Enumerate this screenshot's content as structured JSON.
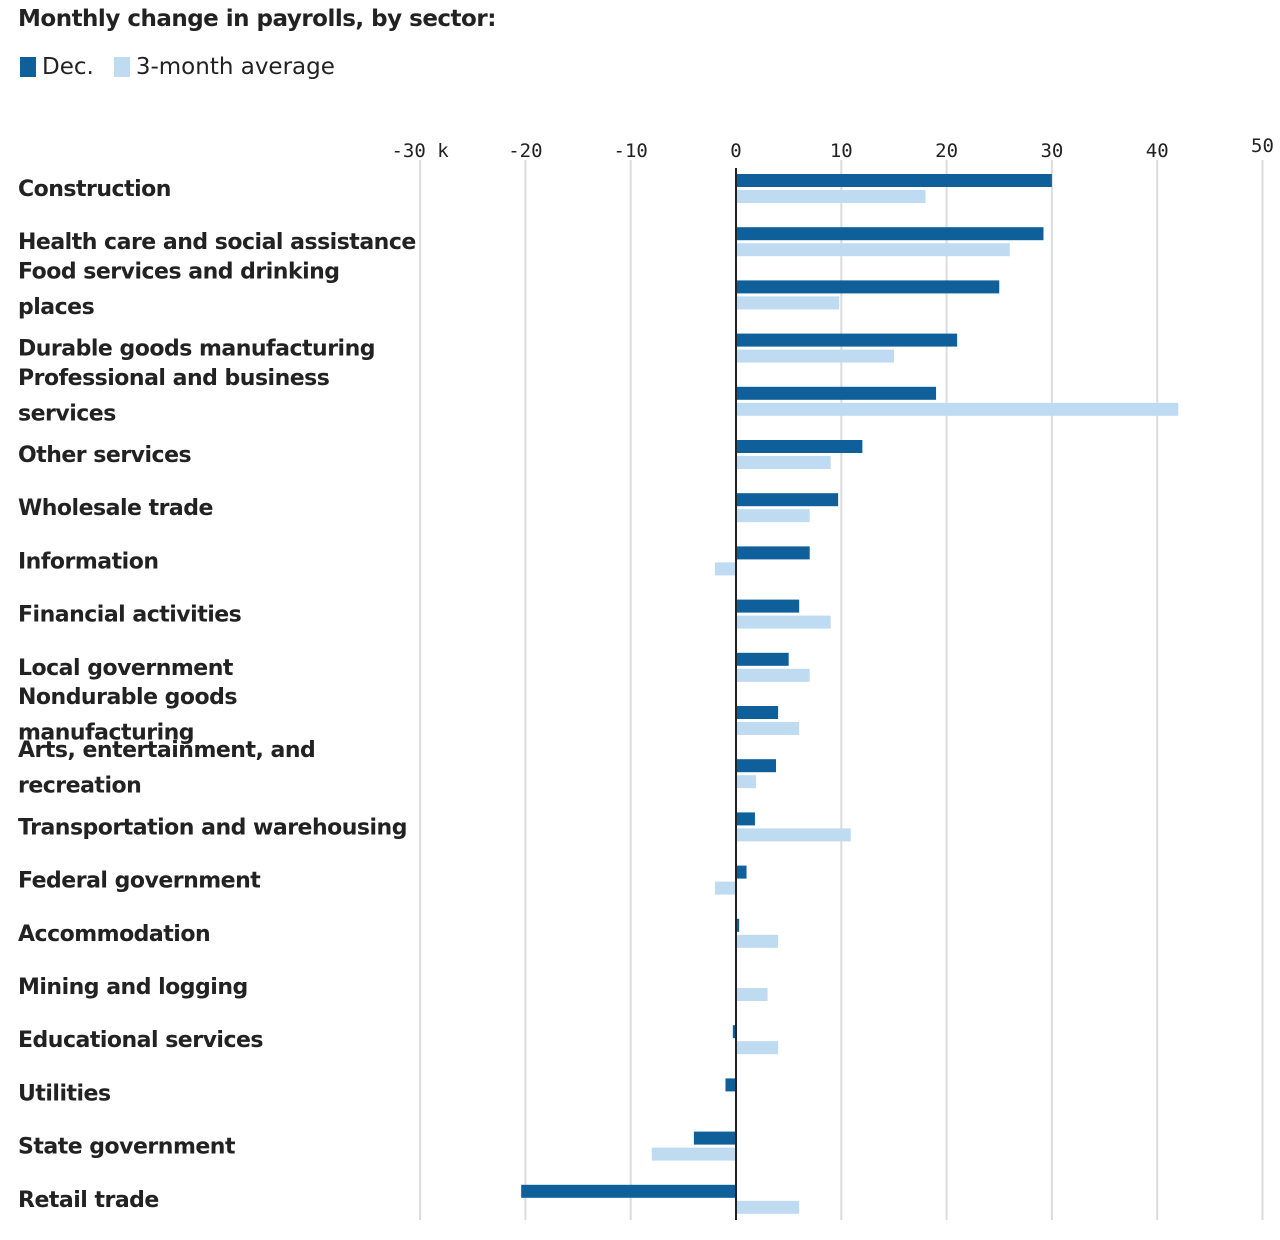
{
  "header": {
    "title": "Monthly change in payrolls, by sector:"
  },
  "legend": [
    {
      "label": "Dec.",
      "color": "#0f5f9a"
    },
    {
      "label": "3-month average",
      "color": "#bfdbf1"
    }
  ],
  "chart_data": {
    "type": "bar",
    "orientation": "horizontal",
    "title": "Monthly change in payrolls, by sector:",
    "xlabel": "",
    "ylabel": "",
    "unit": "thousands",
    "xlim": [
      -30,
      50
    ],
    "ticks": [
      -30,
      -20,
      -10,
      0,
      10,
      20,
      30,
      40,
      50
    ],
    "tick_labels": [
      "-30 k",
      "-20",
      "-10",
      "0",
      "10",
      "20",
      "30",
      "40",
      "50"
    ],
    "grid": true,
    "legend_position": "top-left",
    "categories": [
      "Construction",
      "Health care and social assistance",
      "Food services and drinking places",
      "Durable goods manufacturing",
      "Professional and business services",
      "Other services",
      "Wholesale trade",
      "Information",
      "Financial activities",
      "Local government",
      "Nondurable goods manufacturing",
      "Arts, entertainment, and recreation",
      "Transportation and warehousing",
      "Federal government",
      "Accommodation",
      "Mining and logging",
      "Educational services",
      "Utilities",
      "State government",
      "Retail trade"
    ],
    "label_lines": [
      [
        "Construction"
      ],
      [
        "Health care and social assistance"
      ],
      [
        "Food services and drinking",
        "places"
      ],
      [
        "Durable goods manufacturing"
      ],
      [
        "Professional and business",
        "services"
      ],
      [
        "Other services"
      ],
      [
        "Wholesale trade"
      ],
      [
        "Information"
      ],
      [
        "Financial activities"
      ],
      [
        "Local government"
      ],
      [
        "Nondurable goods",
        "manufacturing"
      ],
      [
        "Arts, entertainment, and",
        "recreation"
      ],
      [
        "Transportation and warehousing"
      ],
      [
        "Federal government"
      ],
      [
        "Accommodation"
      ],
      [
        "Mining and logging"
      ],
      [
        "Educational services"
      ],
      [
        "Utilities"
      ],
      [
        "State government"
      ],
      [
        "Retail trade"
      ]
    ],
    "series": [
      {
        "name": "Dec.",
        "color": "#0f5f9a",
        "values": [
          30,
          29.2,
          25,
          21,
          19,
          12,
          9.7,
          7,
          6,
          5,
          4,
          3.8,
          1.8,
          1,
          0.3,
          0,
          -0.3,
          -1,
          -4,
          -20.4
        ]
      },
      {
        "name": "3-month average",
        "color": "#bfdbf1",
        "values": [
          18,
          26,
          9.8,
          15,
          42,
          9,
          7,
          -2,
          9,
          7,
          6,
          1.9,
          10.9,
          -2,
          4,
          3,
          4,
          0,
          -8,
          6
        ]
      }
    ]
  }
}
